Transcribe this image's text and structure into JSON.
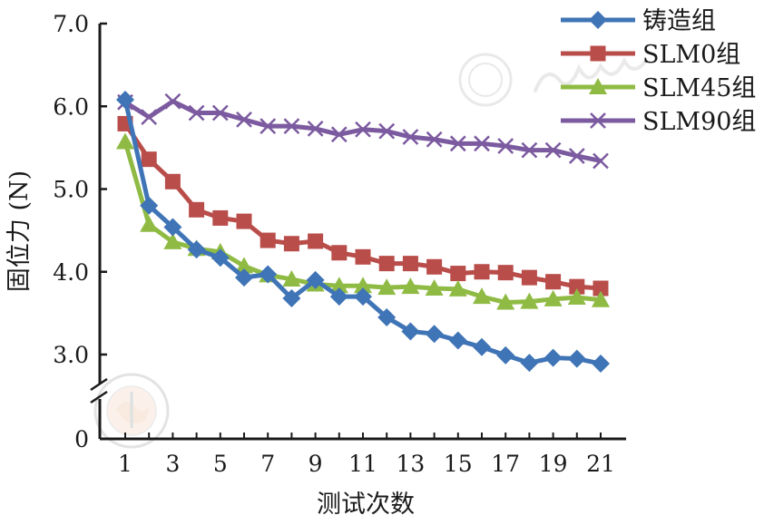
{
  "chart_data": {
    "type": "line",
    "xlabel": "测试次数",
    "ylabel": "固位力 (N)",
    "x": [
      1,
      2,
      3,
      4,
      5,
      6,
      7,
      8,
      9,
      10,
      11,
      12,
      13,
      14,
      15,
      16,
      17,
      18,
      19,
      20,
      21
    ],
    "x_ticks": [
      1,
      3,
      5,
      7,
      9,
      11,
      13,
      15,
      17,
      19,
      21
    ],
    "xlim": [
      0.5,
      21.5
    ],
    "y_ticks": [
      "0",
      "3.0",
      "4.0",
      "5.0",
      "6.0",
      "7.0"
    ],
    "y_tick_values": [
      0,
      3.0,
      4.0,
      5.0,
      6.0,
      7.0
    ],
    "ylim": [
      0,
      7.0
    ],
    "y_axis_break": true,
    "grid": false,
    "legend_position": "top-right",
    "series": [
      {
        "name": "铸造组",
        "color": "#3f74b6",
        "marker": "diamond",
        "values": [
          6.08,
          4.8,
          4.54,
          4.27,
          4.17,
          3.93,
          3.97,
          3.68,
          3.9,
          3.7,
          3.7,
          3.45,
          3.28,
          3.25,
          3.17,
          3.09,
          2.99,
          2.9,
          2.96,
          2.95,
          2.89
        ]
      },
      {
        "name": "SLM0组",
        "color": "#b94d4a",
        "marker": "square",
        "values": [
          5.79,
          5.36,
          5.09,
          4.75,
          4.65,
          4.61,
          4.38,
          4.34,
          4.37,
          4.23,
          4.18,
          4.1,
          4.1,
          4.06,
          3.98,
          4.0,
          3.99,
          3.93,
          3.88,
          3.82,
          3.8
        ]
      },
      {
        "name": "SLM45组",
        "color": "#8fbb44",
        "marker": "triangle",
        "values": [
          5.57,
          4.57,
          4.36,
          4.28,
          4.24,
          4.07,
          3.96,
          3.91,
          3.85,
          3.83,
          3.83,
          3.81,
          3.82,
          3.8,
          3.79,
          3.7,
          3.63,
          3.64,
          3.67,
          3.69,
          3.66
        ]
      },
      {
        "name": "SLM90组",
        "color": "#7b5a9f",
        "marker": "x",
        "values": [
          6.05,
          5.87,
          6.06,
          5.92,
          5.92,
          5.84,
          5.76,
          5.76,
          5.73,
          5.66,
          5.72,
          5.7,
          5.63,
          5.6,
          5.55,
          5.55,
          5.52,
          5.47,
          5.47,
          5.4,
          5.34
        ]
      }
    ]
  }
}
